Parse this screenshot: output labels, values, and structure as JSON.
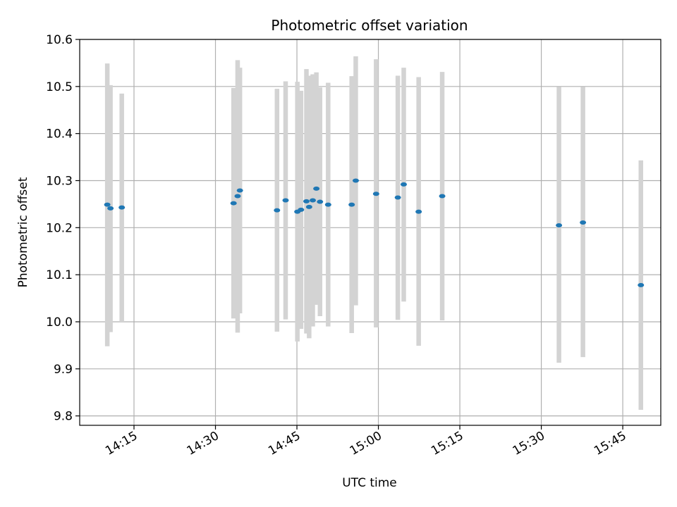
{
  "chart_data": {
    "type": "scatter",
    "title": "Photometric offset variation",
    "xlabel": "UTC time",
    "ylabel": "Photometric offset",
    "xlim": [
      "14:05",
      "15:52"
    ],
    "ylim": [
      9.78,
      10.6
    ],
    "xticks": [
      "14:15",
      "14:30",
      "14:45",
      "15:00",
      "15:15",
      "15:30",
      "15:45"
    ],
    "yticks": [
      "9.8",
      "9.9",
      "10.0",
      "10.1",
      "10.2",
      "10.3",
      "10.4",
      "10.5",
      "10.6"
    ],
    "grid": true,
    "colors": {
      "point": "#1f77b4",
      "errorbar": "#d3d3d3",
      "grid": "#b0b0b0"
    },
    "series": [
      {
        "points": [
          {
            "x": "14:10:05",
            "y": 10.249,
            "err_low": 9.948,
            "err_high": 10.549
          },
          {
            "x": "14:10:40",
            "y": 10.241,
            "err_low": 9.978,
            "err_high": 10.503
          },
          {
            "x": "14:12:45",
            "y": 10.243,
            "err_low": 10.0,
            "err_high": 10.485
          },
          {
            "x": "14:33:20",
            "y": 10.252,
            "err_low": 10.007,
            "err_high": 10.497
          },
          {
            "x": "14:34:05",
            "y": 10.267,
            "err_low": 9.977,
            "err_high": 10.556
          },
          {
            "x": "14:34:30",
            "y": 10.279,
            "err_low": 10.018,
            "err_high": 10.54
          },
          {
            "x": "14:41:20",
            "y": 10.237,
            "err_low": 9.979,
            "err_high": 10.495
          },
          {
            "x": "14:42:55",
            "y": 10.258,
            "err_low": 10.005,
            "err_high": 10.511
          },
          {
            "x": "14:45:05",
            "y": 10.234,
            "err_low": 9.958,
            "err_high": 10.51
          },
          {
            "x": "14:45:45",
            "y": 10.238,
            "err_low": 9.985,
            "err_high": 10.491
          },
          {
            "x": "14:46:45",
            "y": 10.256,
            "err_low": 9.975,
            "err_high": 10.537
          },
          {
            "x": "14:47:15",
            "y": 10.244,
            "err_low": 9.965,
            "err_high": 10.523
          },
          {
            "x": "14:47:55",
            "y": 10.258,
            "err_low": 9.99,
            "err_high": 10.526
          },
          {
            "x": "14:48:35",
            "y": 10.283,
            "err_low": 10.036,
            "err_high": 10.53
          },
          {
            "x": "14:49:15",
            "y": 10.255,
            "err_low": 10.012,
            "err_high": 10.498
          },
          {
            "x": "14:50:45",
            "y": 10.249,
            "err_low": 9.99,
            "err_high": 10.508
          },
          {
            "x": "14:55:05",
            "y": 10.249,
            "err_low": 9.976,
            "err_high": 10.522
          },
          {
            "x": "14:55:50",
            "y": 10.3,
            "err_low": 10.035,
            "err_high": 10.564
          },
          {
            "x": "14:59:35",
            "y": 10.272,
            "err_low": 9.988,
            "err_high": 10.558
          },
          {
            "x": "15:03:35",
            "y": 10.264,
            "err_low": 10.004,
            "err_high": 10.523
          },
          {
            "x": "15:04:40",
            "y": 10.292,
            "err_low": 10.043,
            "err_high": 10.54
          },
          {
            "x": "15:07:25",
            "y": 10.234,
            "err_low": 9.949,
            "err_high": 10.52
          },
          {
            "x": "15:11:45",
            "y": 10.267,
            "err_low": 10.003,
            "err_high": 10.531
          },
          {
            "x": "15:33:15",
            "y": 10.205,
            "err_low": 9.913,
            "err_high": 10.499
          },
          {
            "x": "15:37:40",
            "y": 10.211,
            "err_low": 9.925,
            "err_high": 10.499
          },
          {
            "x": "15:48:20",
            "y": 10.078,
            "err_low": 9.813,
            "err_high": 10.343
          }
        ]
      }
    ]
  }
}
